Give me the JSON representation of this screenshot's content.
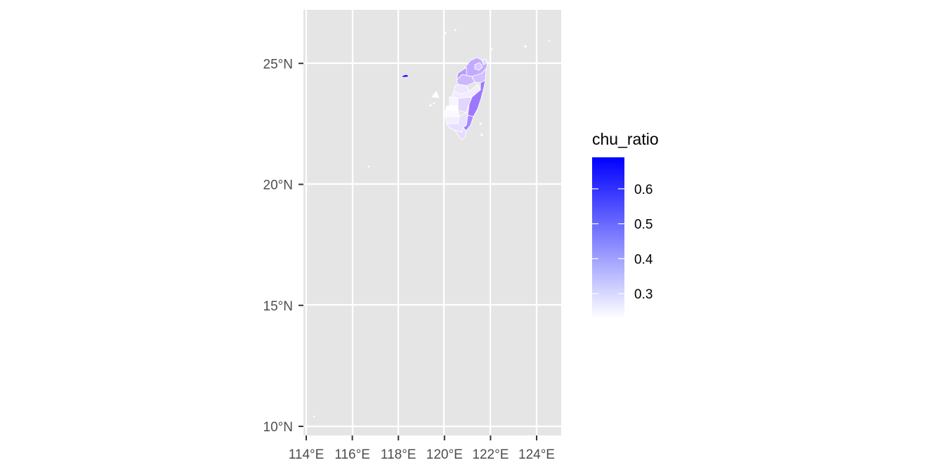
{
  "map": {
    "longitude_range": [
      114,
      125
    ],
    "latitude_range": [
      10,
      27
    ],
    "x_ticks": [
      {
        "value": 114,
        "label": "114°E"
      },
      {
        "value": 116,
        "label": "116°E"
      },
      {
        "value": 118,
        "label": "118°E"
      },
      {
        "value": 120,
        "label": "120°E"
      },
      {
        "value": 122,
        "label": "122°E"
      },
      {
        "value": 124,
        "label": "124°E"
      }
    ],
    "y_ticks": [
      {
        "value": 10,
        "label": "10°N"
      },
      {
        "value": 15,
        "label": "15°N"
      },
      {
        "value": 20,
        "label": "20°N"
      },
      {
        "value": 25,
        "label": "25°N"
      }
    ],
    "panel_background": "#e5e5e5",
    "grid_color": "#ffffff",
    "region_border_color": "#ffffff"
  },
  "legend": {
    "title": "chu_ratio",
    "range": [
      0.23,
      0.69
    ],
    "breaks": [
      {
        "value": 0.3,
        "label": "0.3"
      },
      {
        "value": 0.4,
        "label": "0.4"
      },
      {
        "value": 0.5,
        "label": "0.5"
      },
      {
        "value": 0.6,
        "label": "0.6"
      }
    ],
    "low_color": "#ffffff",
    "high_color": "#0000ff"
  }
}
